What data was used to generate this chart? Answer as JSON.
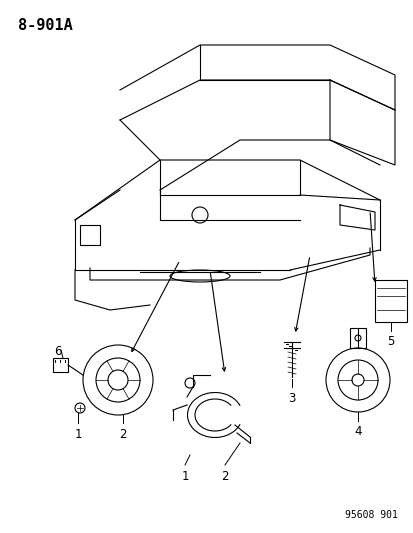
{
  "title_code": "8-901A",
  "watermark": "95608 901",
  "bg_color": "#ffffff",
  "line_color": "#000000",
  "title_fontsize": 11,
  "label_fontsize": 8.5,
  "watermark_fontsize": 7
}
